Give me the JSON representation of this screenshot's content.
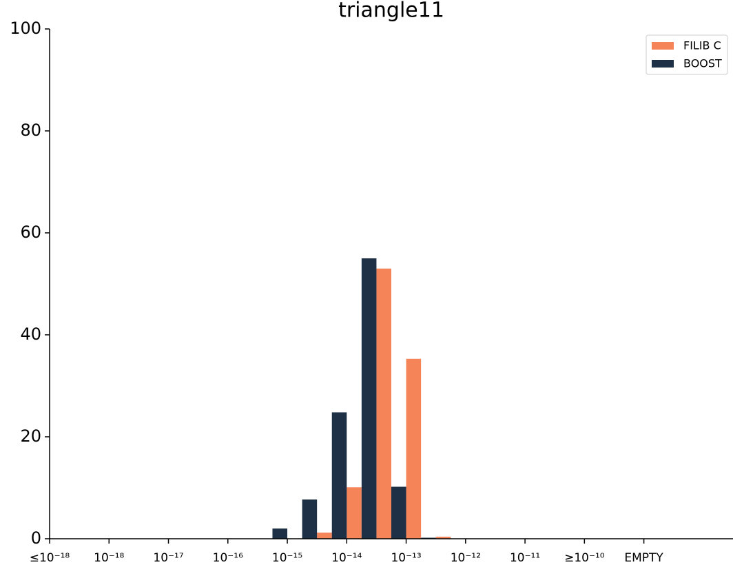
{
  "chart_data": {
    "type": "histogram",
    "title": "triangle11",
    "bins": [
      3.5,
      4.0,
      4.5,
      5.0,
      5.5,
      6.0,
      6.5,
      7.0
    ],
    "series": [
      {
        "name": "FILIB C",
        "color": "#f58459",
        "values": [
          0,
          0,
          1.2,
          10.1,
          53,
          35.3,
          0.4
        ]
      },
      {
        "name": "BOOST",
        "color": "#1d3045",
        "values": [
          2,
          7.7,
          24.8,
          55,
          10.2,
          0.2,
          0
        ]
      }
    ],
    "xlim": [
      0,
      11.5
    ],
    "xticks": [
      {
        "value": 0,
        "label": "≤10⁻¹⁸"
      },
      {
        "value": 1,
        "label": "10⁻¹⁸"
      },
      {
        "value": 2,
        "label": "10⁻¹⁷"
      },
      {
        "value": 3,
        "label": "10⁻¹⁶"
      },
      {
        "value": 4,
        "label": "10⁻¹⁵"
      },
      {
        "value": 5,
        "label": "10⁻¹⁴"
      },
      {
        "value": 6,
        "label": "10⁻¹³"
      },
      {
        "value": 7,
        "label": "10⁻¹²"
      },
      {
        "value": 8,
        "label": "10⁻¹¹"
      },
      {
        "value": 9,
        "label": "≥10⁻¹⁰"
      },
      {
        "value": 10,
        "label": "EMPTY"
      }
    ],
    "ylim": [
      0,
      100
    ],
    "yticks": [
      0,
      20,
      40,
      60,
      80,
      100
    ],
    "legend": "upper right"
  }
}
